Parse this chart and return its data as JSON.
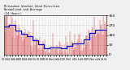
{
  "title_line1": "Milwaukee Weather Wind Direction",
  "title_line2": "Normalized and Average",
  "title_line3": "(24 Hours)",
  "background_color": "#f0f0f0",
  "plot_bg_color": "#f8f8f8",
  "grid_color": "#bbbbbb",
  "bar_color": "#cc0000",
  "line_color": "#0000dd",
  "ylim_min": 0,
  "ylim_max": 360,
  "yticks": [
    0,
    90,
    180,
    270,
    360
  ],
  "num_points": 144,
  "seed": 17
}
